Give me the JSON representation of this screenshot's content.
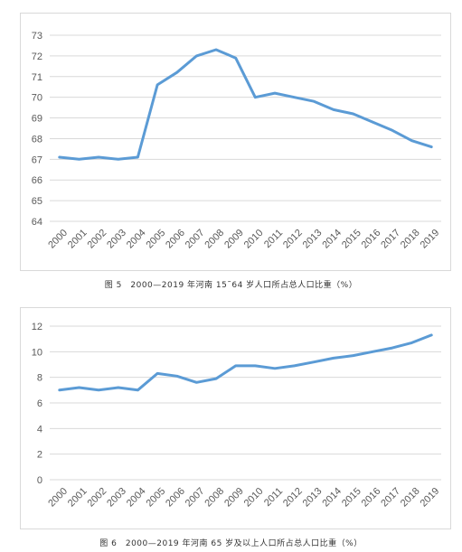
{
  "colors": {
    "line": "#5b9bd5",
    "grid": "#d9d9d9",
    "axis_text": "#595959"
  },
  "chart_data": [
    {
      "type": "line",
      "title": "",
      "xlabel": "",
      "ylabel": "",
      "ylim": [
        64,
        73
      ],
      "yticks": [
        64,
        65,
        66,
        67,
        68,
        69,
        70,
        71,
        72,
        73
      ],
      "grid": true,
      "legend": "none",
      "categories": [
        "2000",
        "2001",
        "2002",
        "2003",
        "2004",
        "2005",
        "2006",
        "2007",
        "2008",
        "2009",
        "2010",
        "2011",
        "2012",
        "2013",
        "2014",
        "2015",
        "2016",
        "2017",
        "2018",
        "2019"
      ],
      "series": [
        {
          "values": [
            67.1,
            67.0,
            67.1,
            67.0,
            67.1,
            70.6,
            71.2,
            72.0,
            72.3,
            71.9,
            70.0,
            70.2,
            70.0,
            69.8,
            69.4,
            69.2,
            68.8,
            68.4,
            67.9,
            67.6
          ]
        }
      ]
    },
    {
      "type": "line",
      "title": "",
      "xlabel": "",
      "ylabel": "",
      "ylim": [
        0,
        12
      ],
      "yticks": [
        0,
        2,
        4,
        6,
        8,
        10,
        12
      ],
      "grid": true,
      "legend": "none",
      "categories": [
        "2000",
        "2001",
        "2002",
        "2003",
        "2004",
        "2005",
        "2006",
        "2007",
        "2008",
        "2009",
        "2010",
        "2011",
        "2012",
        "2013",
        "2014",
        "2015",
        "2016",
        "2017",
        "2018",
        "2019"
      ],
      "series": [
        {
          "values": [
            7.0,
            7.2,
            7.0,
            7.2,
            7.0,
            8.3,
            8.1,
            7.6,
            7.9,
            8.9,
            8.9,
            8.7,
            8.9,
            9.2,
            9.5,
            9.7,
            10.0,
            10.3,
            10.7,
            11.3
          ]
        }
      ]
    }
  ],
  "captions": [
    "图 5　2000—2019 年河南 15˜64 岁人口所占总人口比重（%）",
    "图 6　2000—2019 年河南 65 岁及以上人口所占总人口比重（%）"
  ]
}
